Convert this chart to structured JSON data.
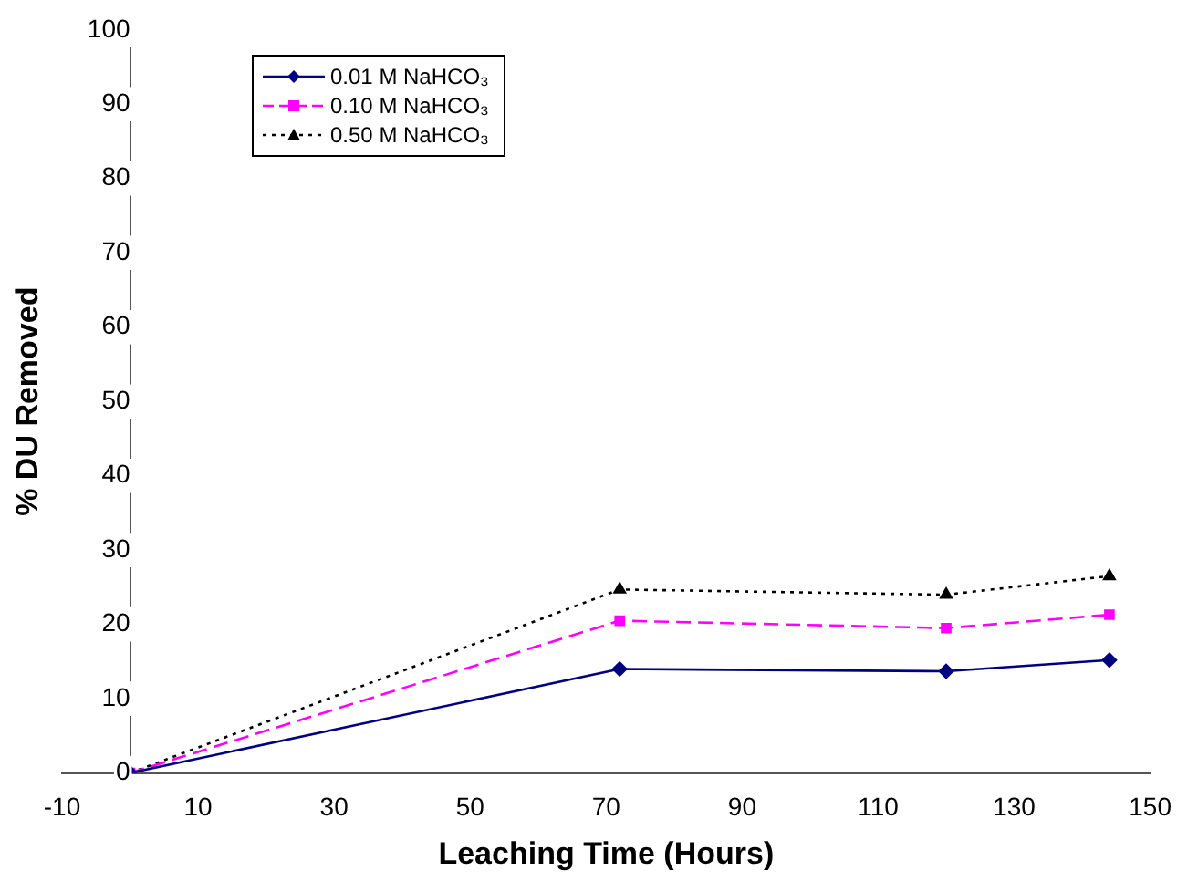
{
  "chart_data": {
    "type": "line",
    "xlabel": "Leaching Time (Hours)",
    "ylabel": "% DU Removed",
    "xlim": [
      -10,
      150
    ],
    "xticks": [
      -10,
      10,
      30,
      50,
      70,
      90,
      110,
      130,
      150
    ],
    "ylim": [
      0,
      100
    ],
    "yticks": [
      0,
      10,
      20,
      30,
      40,
      50,
      60,
      70,
      80,
      90,
      100
    ],
    "grid": false,
    "legend": "top left",
    "series": [
      {
        "name": "0.01 M NaHCO₃",
        "color": "#000080",
        "x": [
          0,
          72,
          120,
          144
        ],
        "values": [
          0,
          14,
          13.7,
          15.2
        ],
        "marker": "diamond",
        "line_style": "solid"
      },
      {
        "name": "0.10 M NaHCO₃",
        "color": "#ff00ff",
        "x": [
          0,
          72,
          120,
          144
        ],
        "values": [
          0,
          20.5,
          19.5,
          21.3
        ],
        "marker": "square",
        "line_style": "dashed"
      },
      {
        "name": "0.50 M NaHCO₃",
        "color": "#000000",
        "x": [
          0,
          72,
          120,
          144
        ],
        "values": [
          0,
          24.7,
          24,
          26.5
        ],
        "marker": "triangle",
        "line_style": "dotted"
      }
    ]
  }
}
